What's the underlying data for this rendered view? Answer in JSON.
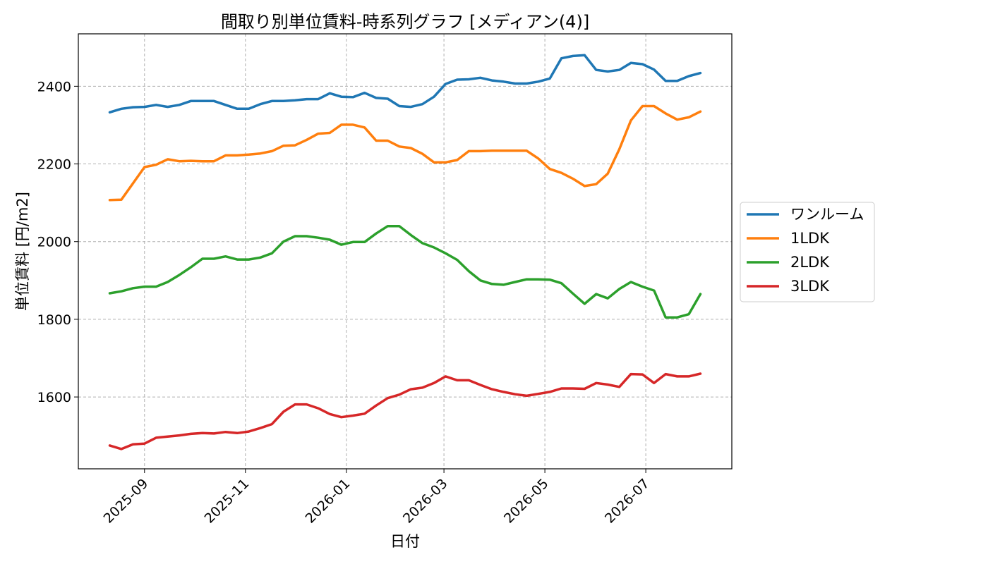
{
  "chart_data": {
    "type": "line",
    "title": "間取り別単位賃料-時系列グラフ [メディアン(4)]",
    "xlabel": "日付",
    "ylabel": "単位賃料 [円/m2]",
    "xlim": [
      "2025-07-23",
      "2026-08-22"
    ],
    "ylim": [
      1415,
      2535
    ],
    "xticks": [
      "2025-09",
      "2025-11",
      "2026-01",
      "2026-03",
      "2026-05",
      "2026-07"
    ],
    "yticks": [
      1600,
      1800,
      2000,
      2200,
      2400
    ],
    "grid": true,
    "legend_position": "center-right-outside",
    "x": [
      "2025-08-11",
      "2025-08-18",
      "2025-08-25",
      "2025-09-01",
      "2025-09-08",
      "2025-09-15",
      "2025-09-22",
      "2025-09-29",
      "2025-10-06",
      "2025-10-13",
      "2025-10-20",
      "2025-10-27",
      "2025-11-03",
      "2025-11-10",
      "2025-11-17",
      "2025-11-24",
      "2025-12-01",
      "2025-12-08",
      "2025-12-15",
      "2025-12-22",
      "2025-12-29",
      "2026-01-05",
      "2026-01-12",
      "2026-01-19",
      "2026-01-26",
      "2026-02-02",
      "2026-02-09",
      "2026-02-16",
      "2026-02-23",
      "2026-03-02",
      "2026-03-09",
      "2026-03-16",
      "2026-03-23",
      "2026-03-30",
      "2026-04-06",
      "2026-04-13",
      "2026-04-20",
      "2026-04-27",
      "2026-05-04",
      "2026-05-11",
      "2026-05-18",
      "2026-05-25",
      "2026-06-01",
      "2026-06-08",
      "2026-06-15",
      "2026-06-22",
      "2026-06-29",
      "2026-07-06",
      "2026-07-13",
      "2026-07-20",
      "2026-07-27",
      "2026-08-03"
    ],
    "series": [
      {
        "name": "ワンルーム",
        "color": "#1f77b4",
        "values": [
          2333,
          2342,
          2346,
          2347,
          2352,
          2347,
          2352,
          2362,
          2362,
          2362,
          2352,
          2342,
          2342,
          2354,
          2362,
          2362,
          2364,
          2367,
          2367,
          2382,
          2373,
          2372,
          2383,
          2370,
          2368,
          2349,
          2347,
          2354,
          2373,
          2406,
          2417,
          2418,
          2422,
          2415,
          2412,
          2407,
          2407,
          2412,
          2420,
          2472,
          2478,
          2480,
          2442,
          2438,
          2442,
          2460,
          2457,
          2443,
          2414,
          2414,
          2426,
          2434
        ]
      },
      {
        "name": "1LDK",
        "color": "#ff7f0e",
        "values": [
          2107,
          2108,
          2150,
          2192,
          2198,
          2212,
          2207,
          2208,
          2207,
          2207,
          2222,
          2222,
          2224,
          2227,
          2233,
          2247,
          2248,
          2262,
          2278,
          2280,
          2301,
          2301,
          2294,
          2260,
          2260,
          2245,
          2241,
          2226,
          2204,
          2204,
          2210,
          2233,
          2233,
          2234,
          2234,
          2234,
          2234,
          2214,
          2187,
          2177,
          2162,
          2143,
          2148,
          2175,
          2238,
          2312,
          2349,
          2349,
          2330,
          2314,
          2320,
          2335
        ]
      },
      {
        "name": "2LDK",
        "color": "#2ca02c",
        "values": [
          1867,
          1872,
          1880,
          1884,
          1884,
          1896,
          1914,
          1934,
          1956,
          1956,
          1962,
          1954,
          1954,
          1959,
          1970,
          2000,
          2014,
          2014,
          2010,
          2005,
          1992,
          1999,
          1999,
          2021,
          2040,
          2040,
          2017,
          1996,
          1985,
          1970,
          1953,
          1924,
          1900,
          1891,
          1889,
          1896,
          1903,
          1903,
          1902,
          1893,
          1866,
          1840,
          1865,
          1854,
          1878,
          1896,
          1884,
          1874,
          1805,
          1805,
          1813,
          1865
        ]
      },
      {
        "name": "3LDK",
        "color": "#d62728",
        "values": [
          1475,
          1466,
          1478,
          1480,
          1495,
          1498,
          1501,
          1505,
          1507,
          1506,
          1510,
          1507,
          1511,
          1520,
          1530,
          1562,
          1581,
          1581,
          1571,
          1556,
          1548,
          1552,
          1557,
          1578,
          1597,
          1606,
          1620,
          1624,
          1636,
          1653,
          1643,
          1643,
          1631,
          1620,
          1613,
          1607,
          1603,
          1608,
          1613,
          1622,
          1622,
          1621,
          1636,
          1632,
          1626,
          1659,
          1658,
          1636,
          1659,
          1653,
          1653,
          1660
        ]
      }
    ]
  }
}
